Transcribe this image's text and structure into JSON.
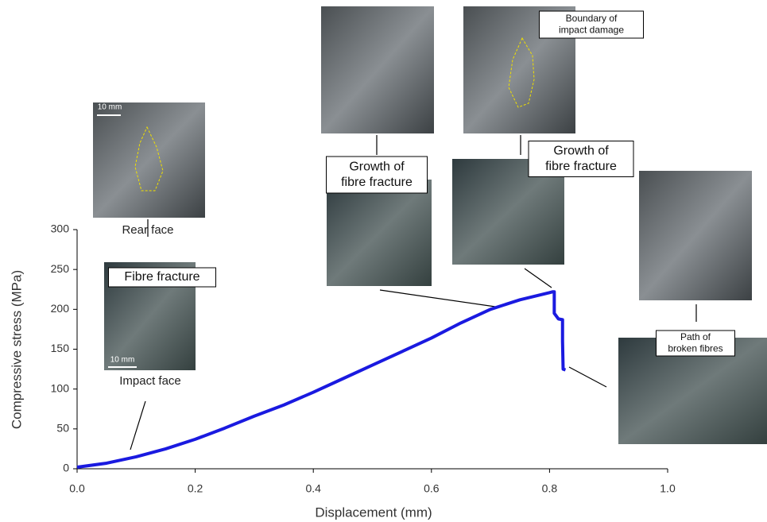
{
  "chart_data": {
    "type": "line",
    "x_label": "Displacement (mm)",
    "y_label": "Compressive stress (MPa)",
    "x": [
      0,
      0.05,
      0.1,
      0.15,
      0.2,
      0.25,
      0.3,
      0.35,
      0.4,
      0.45,
      0.5,
      0.55,
      0.6,
      0.65,
      0.7,
      0.75,
      0.8,
      0.805,
      0.808,
      0.808,
      0.815,
      0.822,
      0.822,
      0.823,
      0.827
    ],
    "series": [
      {
        "color": "#1a1ae0",
        "values": [
          2,
          7,
          15,
          25,
          37,
          51,
          66,
          80,
          96,
          113,
          130,
          147,
          164,
          183,
          200,
          212,
          221,
          222,
          222,
          195,
          188,
          187,
          160,
          125,
          124
        ]
      }
    ],
    "xlim": [
      0,
      1.0
    ],
    "ylim": [
      0,
      300
    ],
    "xticks": [
      {
        "value": 0,
        "label": "0.0"
      },
      {
        "value": 0.2,
        "label": "0.2"
      },
      {
        "value": 0.4,
        "label": "0.4"
      },
      {
        "value": 0.6,
        "label": "0.6"
      },
      {
        "value": 0.8,
        "label": "0.8"
      },
      {
        "value": 1.0,
        "label": "1.0"
      }
    ],
    "yticks": [
      0,
      50,
      100,
      150,
      200,
      250,
      300
    ],
    "annotations": [
      {
        "lines": [
          "Rear face"
        ]
      },
      {
        "lines": [
          "Impact face"
        ]
      },
      {
        "lines": [
          "Fibre fracture"
        ]
      },
      {
        "lines": [
          "Growth of",
          "fibre fracture"
        ]
      },
      {
        "lines": [
          "Boundary of",
          "impact damage"
        ]
      },
      {
        "lines": [
          "Growth of",
          "fibre fracture"
        ]
      },
      {
        "lines": [
          "Path of",
          "broken fibres"
        ]
      },
      {
        "lines": [
          "10 mm"
        ]
      },
      {
        "lines": [
          "10 mm"
        ]
      }
    ]
  }
}
